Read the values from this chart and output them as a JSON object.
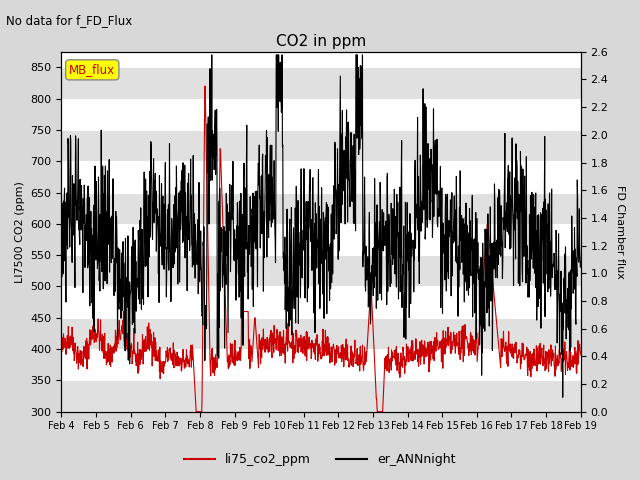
{
  "title": "CO2 in ppm",
  "suptitle_left": "No data for f_FD_Flux",
  "ylabel_left": "LI7500 CO2 (ppm)",
  "ylabel_right": "FD Chamber flux",
  "ylim_left": [
    300,
    875
  ],
  "ylim_right": [
    0.0,
    2.6
  ],
  "yticks_left": [
    300,
    350,
    400,
    450,
    500,
    550,
    600,
    650,
    700,
    750,
    800,
    850
  ],
  "yticks_right": [
    0.0,
    0.2,
    0.4,
    0.6,
    0.8,
    1.0,
    1.2,
    1.4,
    1.6,
    1.8,
    2.0,
    2.2,
    2.4,
    2.6
  ],
  "xtick_labels": [
    "Feb 4",
    "Feb 5",
    "Feb 6",
    "Feb 7",
    "Feb 8",
    "Feb 9",
    "Feb 10",
    "Feb 11",
    "Feb 12",
    "Feb 13",
    "Feb 14",
    "Feb 15",
    "Feb 16",
    "Feb 17",
    "Feb 18",
    "Feb 19"
  ],
  "line1_color": "#cc0000",
  "line2_color": "#000000",
  "legend_labels": [
    "li75_co2_ppm",
    "er_ANNnight"
  ],
  "mb_flux_box_color": "#ffff00",
  "mb_flux_text_color": "#cc0000",
  "background_color": "#d8d8d8",
  "plot_bg_color": "#ffffff",
  "band_color": "#e0e0e0",
  "figsize": [
    6.4,
    4.8
  ],
  "dpi": 100,
  "seed": 42,
  "n_points": 1500
}
